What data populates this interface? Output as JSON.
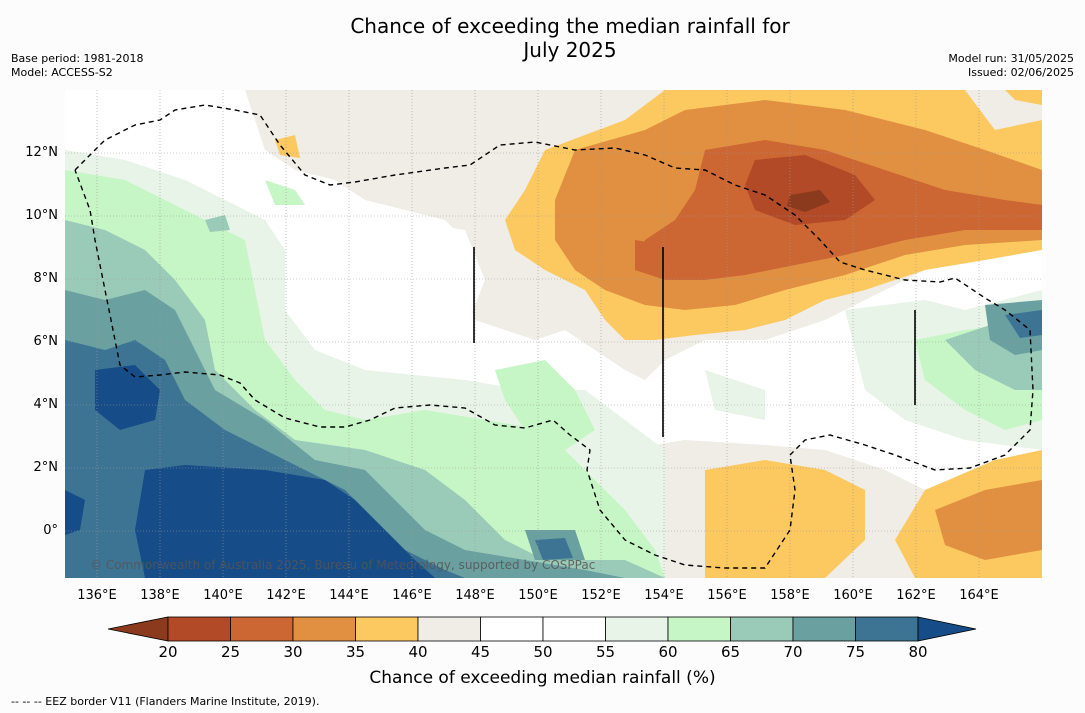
{
  "title": {
    "line1": "Chance of exceeding the median rainfall for",
    "line2": "July 2025"
  },
  "meta_left": {
    "base_period": "Base period: 1981-2018",
    "model": "Model: ACCESS-S2"
  },
  "meta_right": {
    "model_run": "Model run: 31/05/2025",
    "issued": "Issued: 02/06/2025"
  },
  "lat_labels": [
    "12°N",
    "10°N",
    "8°N",
    "6°N",
    "4°N",
    "2°N",
    "0°"
  ],
  "lon_labels": [
    "136°E",
    "138°E",
    "140°E",
    "142°E",
    "144°E",
    "146°E",
    "148°E",
    "150°E",
    "152°E",
    "154°E",
    "156°E",
    "158°E",
    "160°E",
    "162°E",
    "164°E"
  ],
  "copyright": "© Commonwealth of Australia 2025, Bureau of Meteorology, supported by COSPPac",
  "colorbar": {
    "ticks": [
      "20",
      "25",
      "30",
      "35",
      "40",
      "45",
      "50",
      "55",
      "60",
      "65",
      "70",
      "75",
      "80"
    ],
    "colors": [
      "#8c3a1e",
      "#b34a27",
      "#cc6633",
      "#e09040",
      "#fcc860",
      "#f0ece6",
      "#ffffff",
      "#ffffff",
      "#e8f4e8",
      "#c6f5c6",
      "#9acbb8",
      "#6aa0a0",
      "#3d7494",
      "#164c87"
    ],
    "title": "Chance of exceeding median rainfall (%)"
  },
  "footnote": "--  --  -- EEZ border V11 (Flanders Marine Institute, 2019)."
}
